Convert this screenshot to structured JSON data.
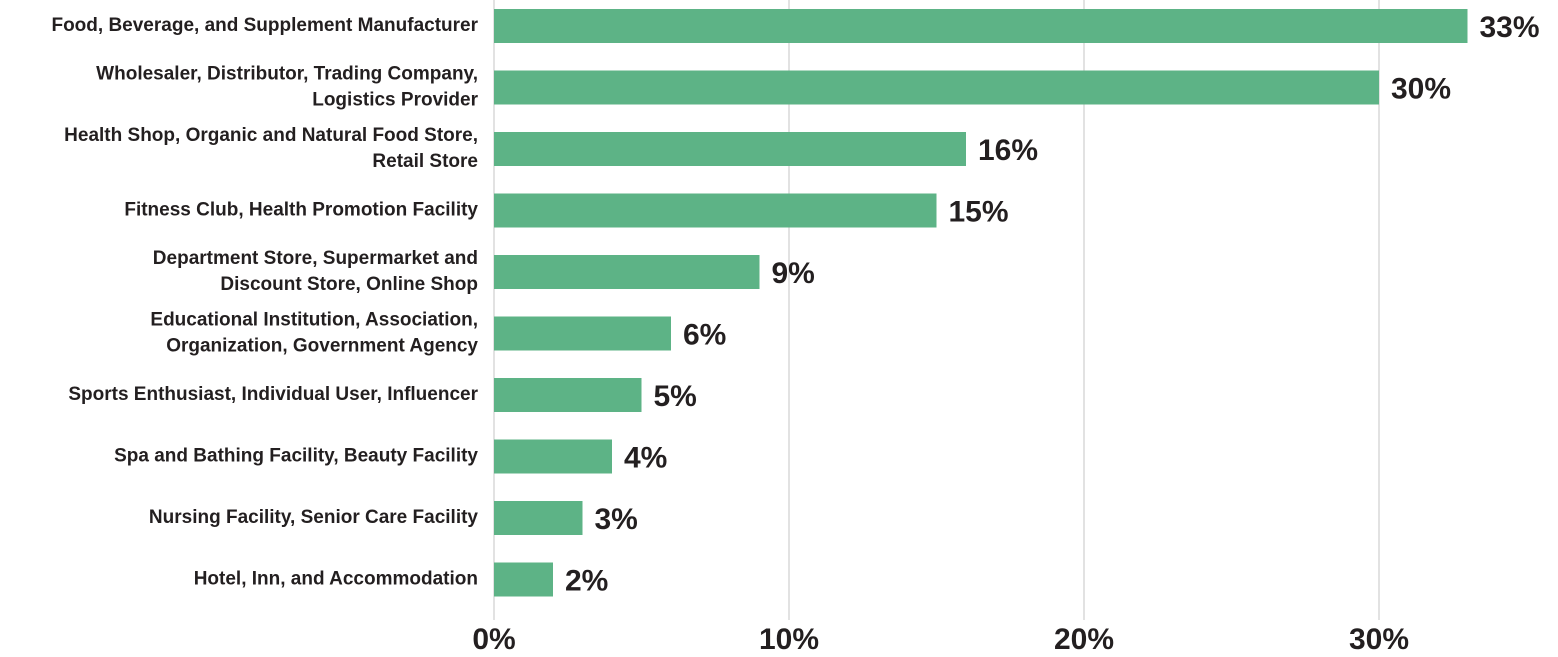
{
  "chart_data": {
    "type": "bar",
    "orientation": "horizontal",
    "categories": [
      [
        "Food, Beverage, and Supplement Manufacturer"
      ],
      [
        "Wholesaler, Distributor, Trading Company,",
        "Logistics Provider"
      ],
      [
        "Health Shop, Organic and Natural Food Store,",
        "Retail Store"
      ],
      [
        "Fitness Club, Health Promotion Facility"
      ],
      [
        "Department Store, Supermarket and",
        "Discount Store, Online Shop"
      ],
      [
        "Educational Institution, Association,",
        "Organization, Government Agency"
      ],
      [
        "Sports Enthusiast, Individual User, Influencer"
      ],
      [
        "Spa and Bathing Facility, Beauty Facility"
      ],
      [
        "Nursing Facility, Senior Care Facility"
      ],
      [
        "Hotel, Inn, and Accommodation"
      ]
    ],
    "values": [
      33,
      30,
      16,
      15,
      9,
      6,
      5,
      4,
      3,
      2
    ],
    "value_labels": [
      "33%",
      "30%",
      "16%",
      "15%",
      "9%",
      "6%",
      "5%",
      "4%",
      "3%",
      "2%"
    ],
    "color": "#5db386",
    "xlim": [
      0,
      36
    ],
    "xticks": [
      {
        "value": 0,
        "label": "0%"
      },
      {
        "value": 10,
        "label": "10%"
      },
      {
        "value": 20,
        "label": "20%"
      },
      {
        "value": 30,
        "label": "30%"
      }
    ],
    "grid": true
  }
}
